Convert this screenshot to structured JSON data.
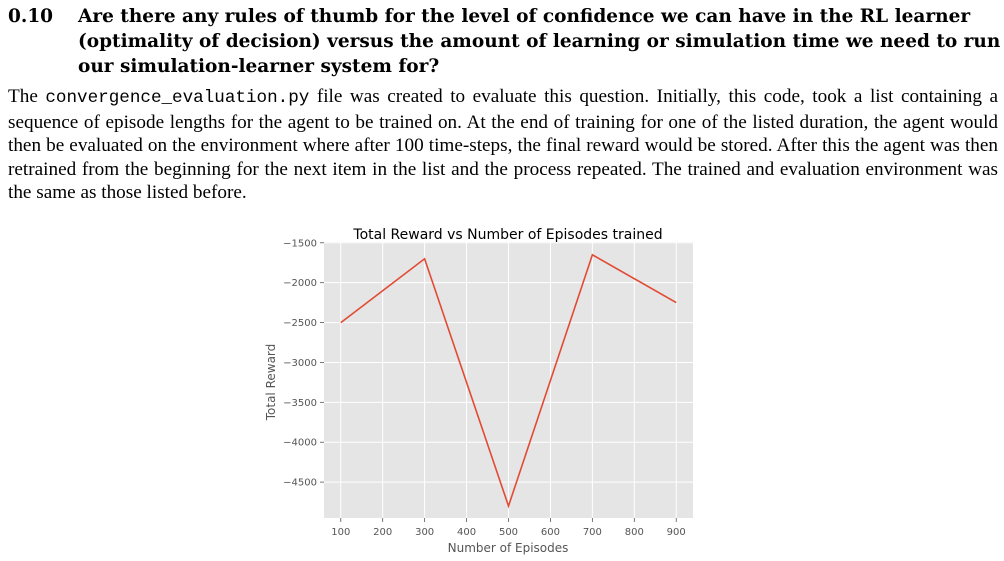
{
  "section": {
    "number": "0.10",
    "title": "Are there any rules of thumb for the level of confidence we can have in the RL learner (optimality of decision) versus the amount of learning or simulation time we need to run our simulation-learner system for?"
  },
  "paragraph": {
    "part1": "The ",
    "code": "convergence_evaluation.py",
    "part2": " file was created to evaluate this question. Initially, this code, took a list containing a sequence of episode lengths for the agent to be trained on. At the end of training for one of the listed duration, the agent would then be evaluated on the environment where after 100 time-steps, the final reward would be stored. After this the agent was then retrained from the beginning for the next item in the list and the process repeated. The trained and evaluation environment was the same as those listed before."
  },
  "chart_data": {
    "type": "line",
    "title": "Total Reward vs Number of Episodes trained",
    "xlabel": "Number of Episodes",
    "ylabel": "Total Reward",
    "x": [
      100,
      300,
      500,
      700,
      900
    ],
    "series": [
      {
        "values": [
          -2500,
          -1700,
          -4800,
          -1650,
          -2250
        ]
      }
    ],
    "xticks": [
      100,
      200,
      300,
      400,
      500,
      600,
      700,
      800,
      900
    ],
    "xtick_labels": [
      "100",
      "200",
      "300",
      "400",
      "500",
      "600",
      "700",
      "800",
      "900"
    ],
    "yticks": [
      -1500,
      -2000,
      -2500,
      -3000,
      -3500,
      -4000,
      -4500
    ],
    "ytick_labels": [
      "−1500",
      "−2000",
      "−2500",
      "−3000",
      "−3500",
      "−4000",
      "−4500"
    ],
    "xlim": [
      60,
      940
    ],
    "ylim": [
      -4950,
      -1490
    ],
    "grid": true,
    "style": {
      "background": "#e5e5e5",
      "grid_color": "#ffffff",
      "line_color": "#e24a33",
      "text_color": "#555555"
    }
  }
}
